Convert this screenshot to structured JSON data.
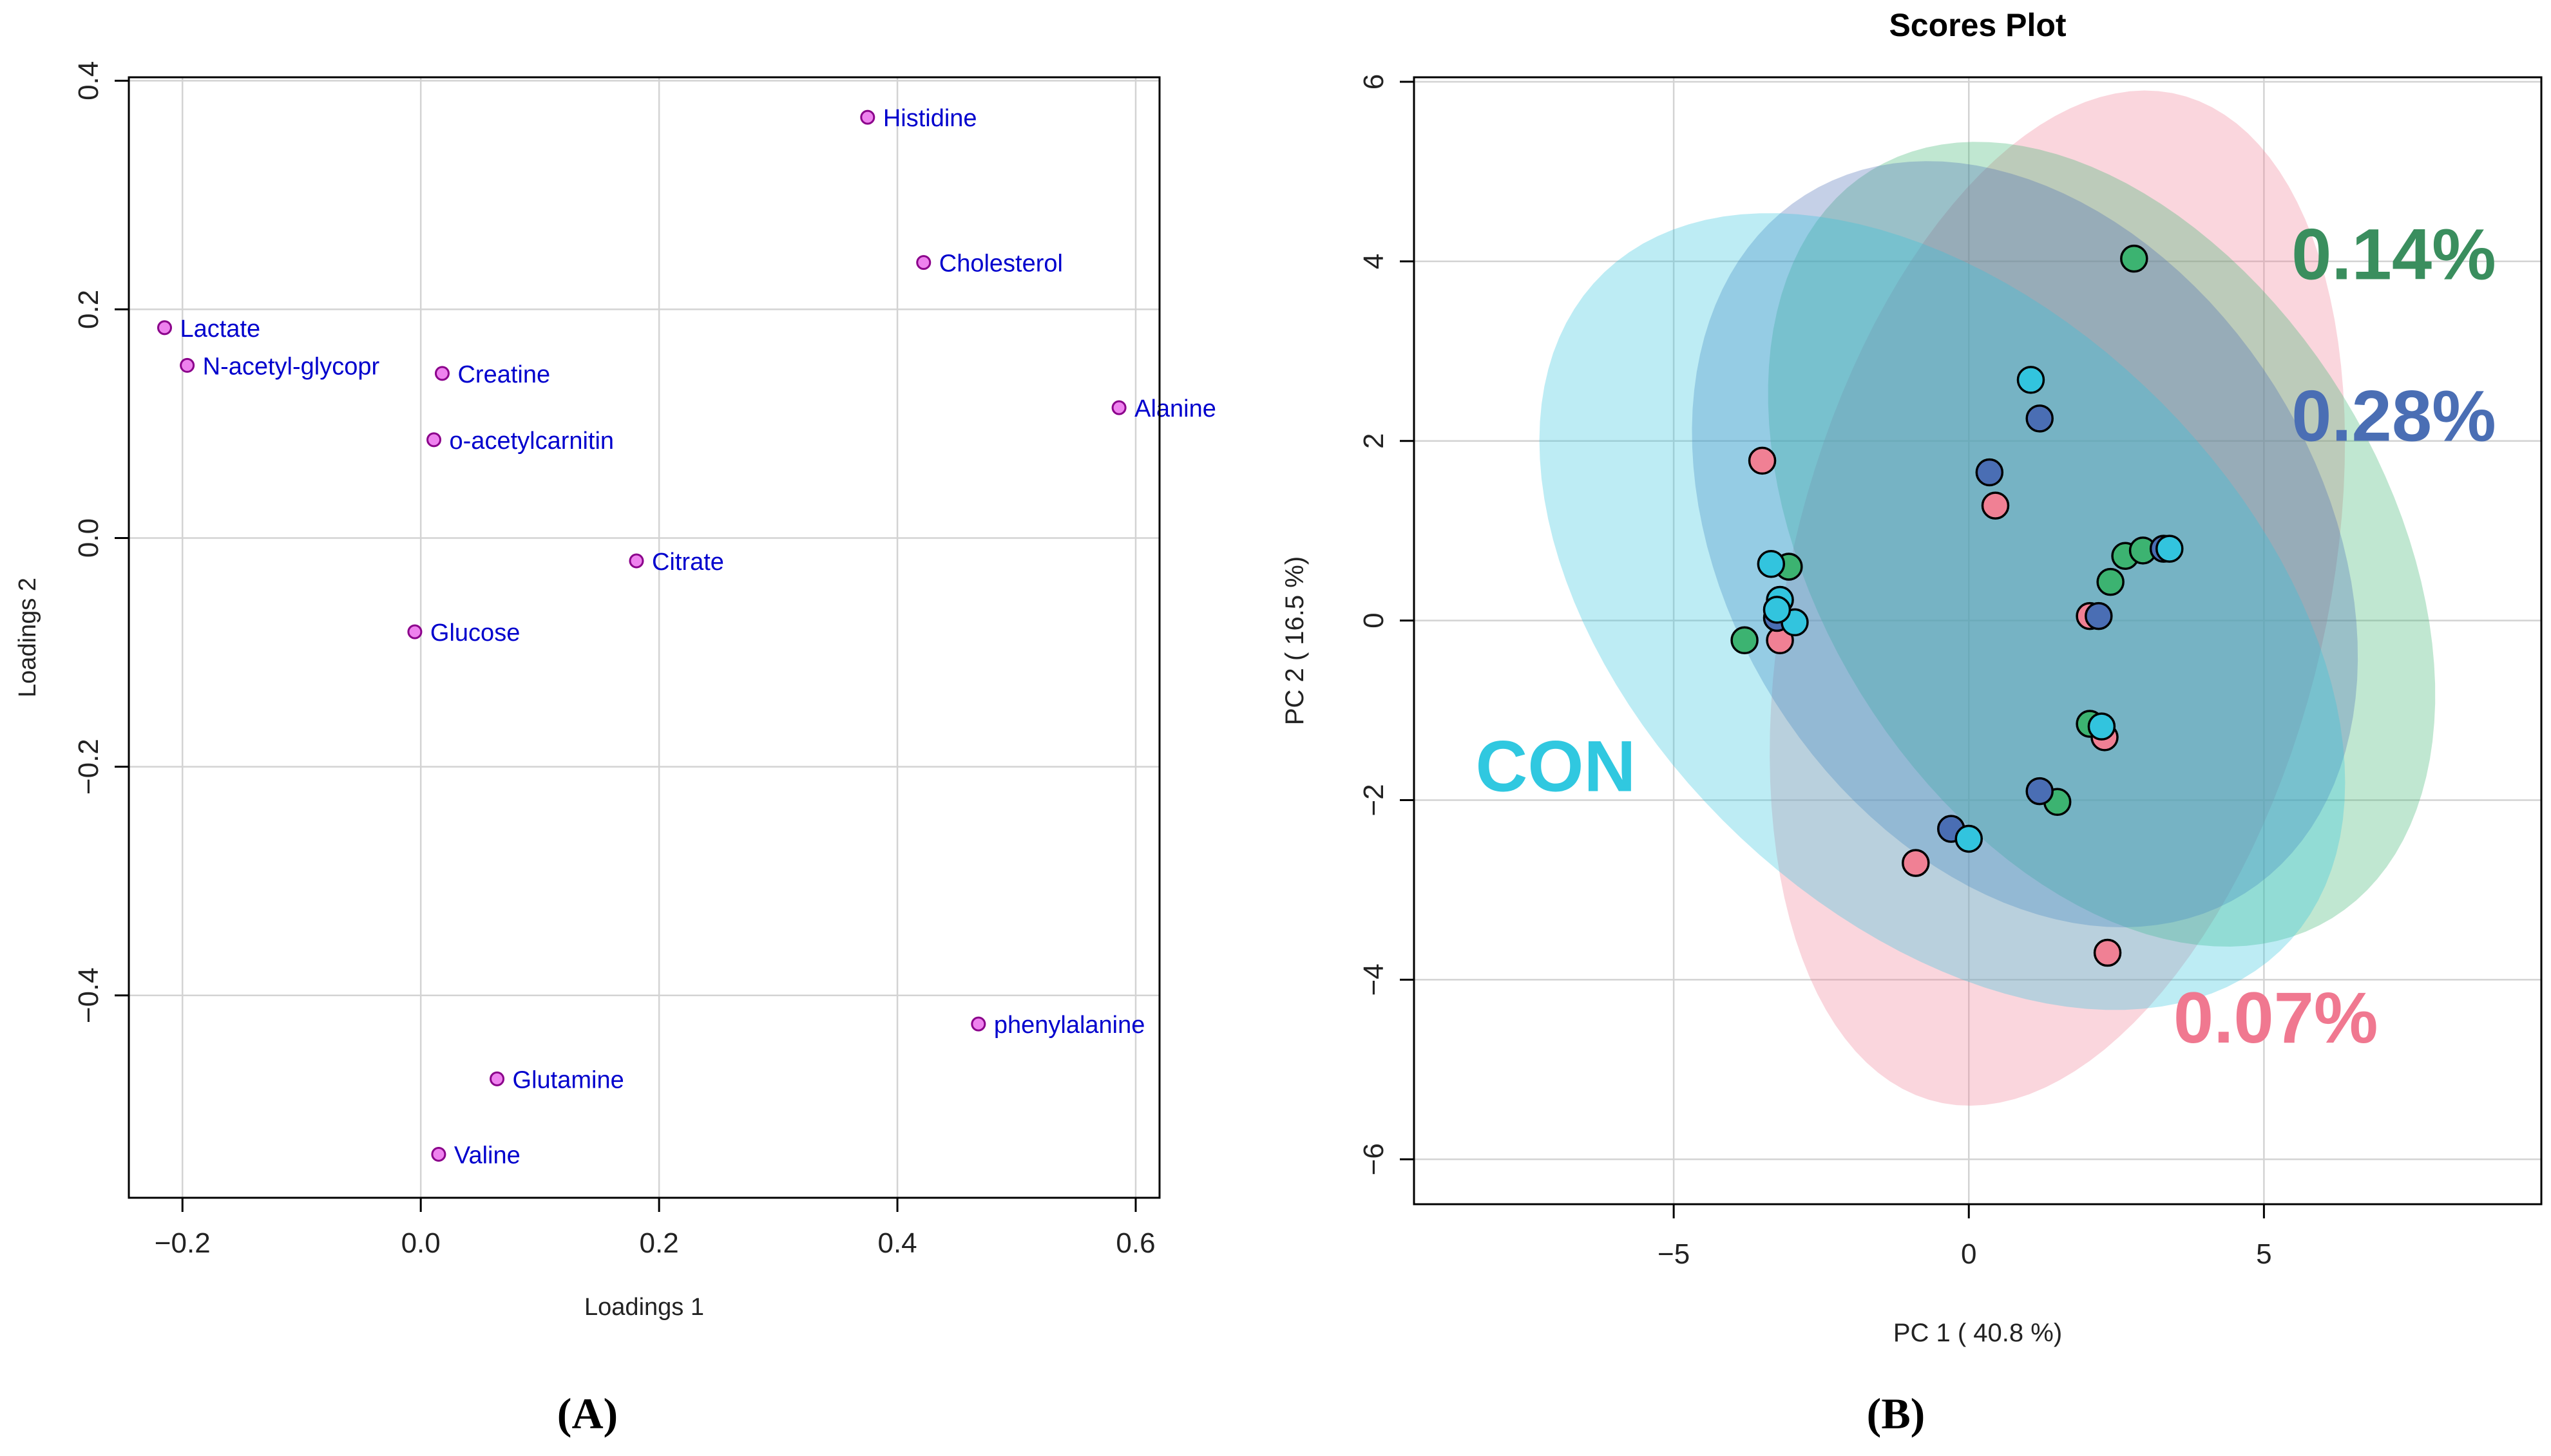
{
  "panel_labels": [
    "(A)",
    "(B)"
  ],
  "chart_data": [
    {
      "type": "scatter",
      "title": "",
      "xlabel": "Loadings 1",
      "ylabel": "Loadings 2",
      "xlim": [
        -0.245,
        0.62
      ],
      "ylim": [
        -0.577,
        0.403
      ],
      "xticks": [
        -0.2,
        0.0,
        0.2,
        0.4,
        0.6
      ],
      "xtick_labels": [
        "−0.2",
        "0.0",
        "0.2",
        "0.4",
        "0.6"
      ],
      "yticks": [
        -0.4,
        -0.2,
        0.0,
        0.2,
        0.4
      ],
      "ytick_labels": [
        "−0.4",
        "−0.2",
        "0.0",
        "0.2",
        "0.4"
      ],
      "grid": true,
      "colors": {
        "point_fill": "#ee82ee",
        "point_stroke": "#8b008b",
        "label": "#0000cd",
        "grid": "#d3d3d3"
      },
      "points": [
        {
          "label": "Histidine",
          "x": 0.375,
          "y": 0.368
        },
        {
          "label": "Cholesterol",
          "x": 0.422,
          "y": 0.241
        },
        {
          "label": "Lactate",
          "x": -0.215,
          "y": 0.184
        },
        {
          "label": "N-acetyl-glycopr",
          "x": -0.196,
          "y": 0.151
        },
        {
          "label": "Creatine",
          "x": 0.018,
          "y": 0.144
        },
        {
          "label": "Alanine",
          "x": 0.586,
          "y": 0.114
        },
        {
          "label": "o-acetylcarnitin",
          "x": 0.011,
          "y": 0.086
        },
        {
          "label": "Citrate",
          "x": 0.181,
          "y": -0.02
        },
        {
          "label": "Glucose",
          "x": -0.005,
          "y": -0.082
        },
        {
          "label": "phenylalanine",
          "x": 0.468,
          "y": -0.425
        },
        {
          "label": "Glutamine",
          "x": 0.064,
          "y": -0.473
        },
        {
          "label": "Valine",
          "x": 0.015,
          "y": -0.539
        }
      ]
    },
    {
      "type": "scatter",
      "title": "Scores Plot",
      "xlabel": "PC 1 ( 40.8 %)",
      "ylabel": "PC 2 ( 16.5 %)",
      "xlim": [
        -9.4,
        9.7
      ],
      "ylim": [
        -6.5,
        6.05
      ],
      "xticks": [
        -5,
        0,
        5
      ],
      "xtick_labels": [
        "−5",
        "0",
        "5"
      ],
      "yticks": [
        -6,
        -4,
        -2,
        0,
        2,
        4,
        6
      ],
      "ytick_labels": [
        "−6",
        "−4",
        "−2",
        "0",
        "2",
        "4",
        "6"
      ],
      "grid": true,
      "series": [
        {
          "name": "0.07%",
          "color": "#f08094",
          "ellipse": {
            "cx": 1.5,
            "cy": 0.25,
            "rx": 6.1,
            "ry": 4.3,
            "angle_deg": -122
          },
          "points": [
            [
              -3.5,
              1.78
            ],
            [
              0.45,
              1.28
            ],
            [
              2.05,
              0.05
            ],
            [
              2.3,
              -1.3
            ],
            [
              -3.2,
              -0.22
            ],
            [
              -0.9,
              -2.7
            ],
            [
              2.35,
              -3.7
            ]
          ]
        },
        {
          "name": "0.14%",
          "color": "#3cb371",
          "ellipse": {
            "cx": 2.25,
            "cy": 0.85,
            "rx": 6.1,
            "ry": 3.85,
            "angle_deg": 151
          },
          "points": [
            [
              2.8,
              4.03
            ],
            [
              -3.05,
              0.6
            ],
            [
              -3.8,
              -0.22
            ],
            [
              2.65,
              0.72
            ],
            [
              2.95,
              0.78
            ],
            [
              2.4,
              0.43
            ],
            [
              2.05,
              -1.15
            ],
            [
              1.5,
              -2.02
            ]
          ]
        },
        {
          "name": "0.28%",
          "color": "#4a6eb4",
          "ellipse": {
            "cx": 0.95,
            "cy": 0.85,
            "rx": 5.9,
            "ry": 3.9,
            "angle_deg": 157
          },
          "points": [
            [
              1.2,
              2.25
            ],
            [
              0.35,
              1.65
            ],
            [
              -3.25,
              0.03
            ],
            [
              2.2,
              0.05
            ],
            [
              3.3,
              0.8
            ],
            [
              1.2,
              -1.9
            ],
            [
              -0.3,
              -2.32
            ]
          ]
        },
        {
          "name": "CON",
          "color": "#32c4de",
          "ellipse": {
            "cx": -0.45,
            "cy": 0.1,
            "rx": 7.2,
            "ry": 3.8,
            "angle_deg": 158
          },
          "points": [
            [
              1.05,
              2.68
            ],
            [
              -3.35,
              0.63
            ],
            [
              -3.2,
              0.23
            ],
            [
              -2.95,
              -0.02
            ],
            [
              3.4,
              0.8
            ],
            [
              2.25,
              -1.18
            ],
            [
              0,
              -2.43
            ],
            [
              -3.25,
              0.12
            ]
          ]
        }
      ]
    }
  ]
}
